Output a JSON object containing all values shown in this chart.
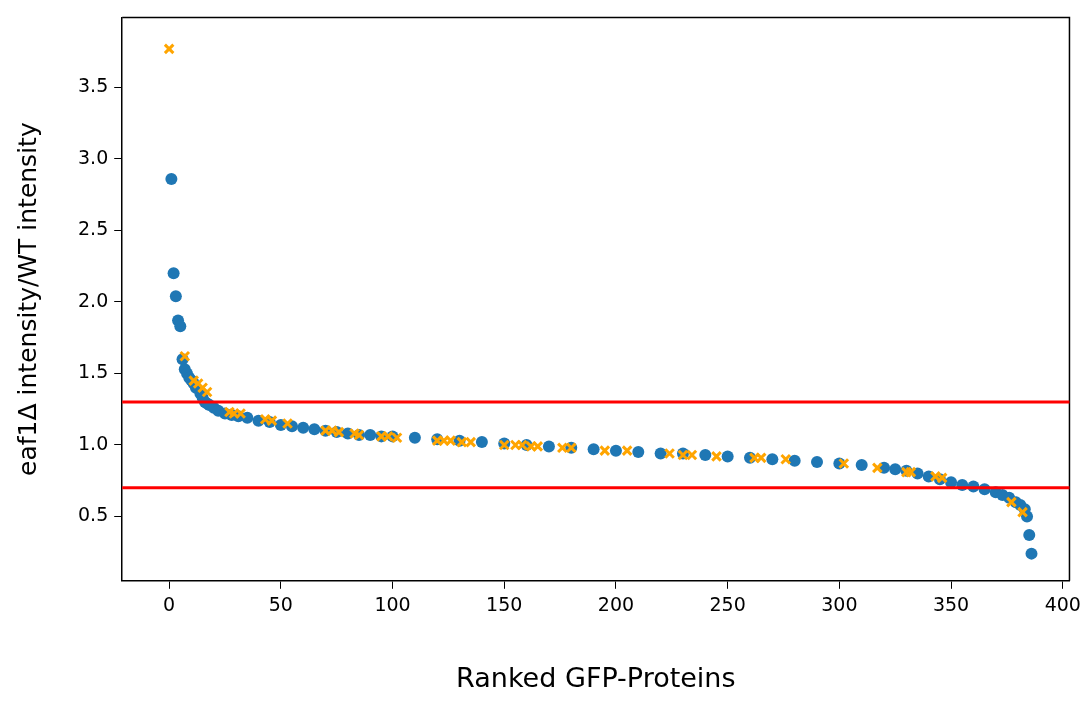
{
  "chart_data": {
    "type": "scatter",
    "xlabel": "Ranked GFP-Proteins",
    "ylabel": "eaf1Δ intensity/WT intensity",
    "xlim": [
      -21,
      403
    ],
    "xticks": [
      0,
      50,
      100,
      150,
      200,
      250,
      300,
      350,
      400
    ],
    "ylim": [
      0.05,
      3.99
    ],
    "yticks": [
      0.5,
      {
        "value": 1,
        "label": "1.0"
      },
      1.5,
      {
        "value": 2,
        "label": "2.0"
      },
      2.5,
      {
        "value": 3,
        "label": "3.0"
      },
      3.5
    ],
    "grid": false,
    "legend": false,
    "ref_lines": [
      {
        "axis": "y",
        "value": 1.3,
        "color": "#ff0000"
      },
      {
        "axis": "y",
        "value": 0.7,
        "color": "#ff0000"
      }
    ],
    "series": [
      {
        "color": "#1f77b4",
        "marker": "circle",
        "x": [
          1,
          2,
          3,
          4,
          5,
          6,
          7,
          8,
          9,
          10,
          11,
          12,
          14,
          15,
          16,
          17,
          18,
          20,
          22,
          25,
          28,
          31,
          35,
          40,
          45,
          50,
          55,
          60,
          65,
          70,
          75,
          80,
          85,
          90,
          95,
          100,
          110,
          120,
          130,
          140,
          150,
          160,
          170,
          180,
          190,
          200,
          210,
          220,
          230,
          240,
          250,
          260,
          270,
          280,
          290,
          300,
          310,
          320,
          325,
          330,
          335,
          340,
          345,
          350,
          355,
          360,
          365,
          370,
          373,
          376,
          379,
          381,
          383,
          384,
          385,
          386
        ],
        "values": [
          2.86,
          2.2,
          2.04,
          1.87,
          1.83,
          1.6,
          1.53,
          1.5,
          1.47,
          1.45,
          1.43,
          1.4,
          1.36,
          1.33,
          1.3,
          1.29,
          1.28,
          1.26,
          1.24,
          1.22,
          1.21,
          1.2,
          1.19,
          1.17,
          1.16,
          1.14,
          1.13,
          1.12,
          1.11,
          1.1,
          1.09,
          1.08,
          1.07,
          1.07,
          1.06,
          1.06,
          1.05,
          1.04,
          1.03,
          1.02,
          1.01,
          1.0,
          0.99,
          0.98,
          0.97,
          0.96,
          0.95,
          0.94,
          0.94,
          0.93,
          0.92,
          0.91,
          0.9,
          0.89,
          0.88,
          0.87,
          0.86,
          0.84,
          0.83,
          0.82,
          0.8,
          0.78,
          0.76,
          0.74,
          0.72,
          0.71,
          0.69,
          0.67,
          0.65,
          0.63,
          0.6,
          0.58,
          0.55,
          0.5,
          0.37,
          0.24
        ]
      },
      {
        "color": "#ffa500",
        "marker": "cross",
        "x": [
          0,
          7,
          11,
          13,
          15,
          17,
          27,
          29,
          32,
          43,
          46,
          53,
          70,
          73,
          76,
          83,
          85,
          95,
          98,
          102,
          120,
          123,
          126,
          131,
          135,
          150,
          155,
          158,
          162,
          165,
          176,
          180,
          195,
          205,
          224,
          230,
          234,
          245,
          262,
          265,
          276,
          302,
          317,
          330,
          332,
          343,
          346,
          377,
          382
        ],
        "values": [
          3.77,
          1.62,
          1.45,
          1.43,
          1.4,
          1.37,
          1.23,
          1.22,
          1.22,
          1.18,
          1.17,
          1.15,
          1.1,
          1.1,
          1.09,
          1.08,
          1.07,
          1.06,
          1.06,
          1.05,
          1.03,
          1.03,
          1.03,
          1.02,
          1.02,
          1.0,
          1.0,
          1.0,
          0.99,
          0.99,
          0.98,
          0.98,
          0.96,
          0.96,
          0.94,
          0.93,
          0.93,
          0.92,
          0.91,
          0.91,
          0.9,
          0.87,
          0.84,
          0.81,
          0.81,
          0.78,
          0.77,
          0.6,
          0.53
        ]
      }
    ]
  }
}
